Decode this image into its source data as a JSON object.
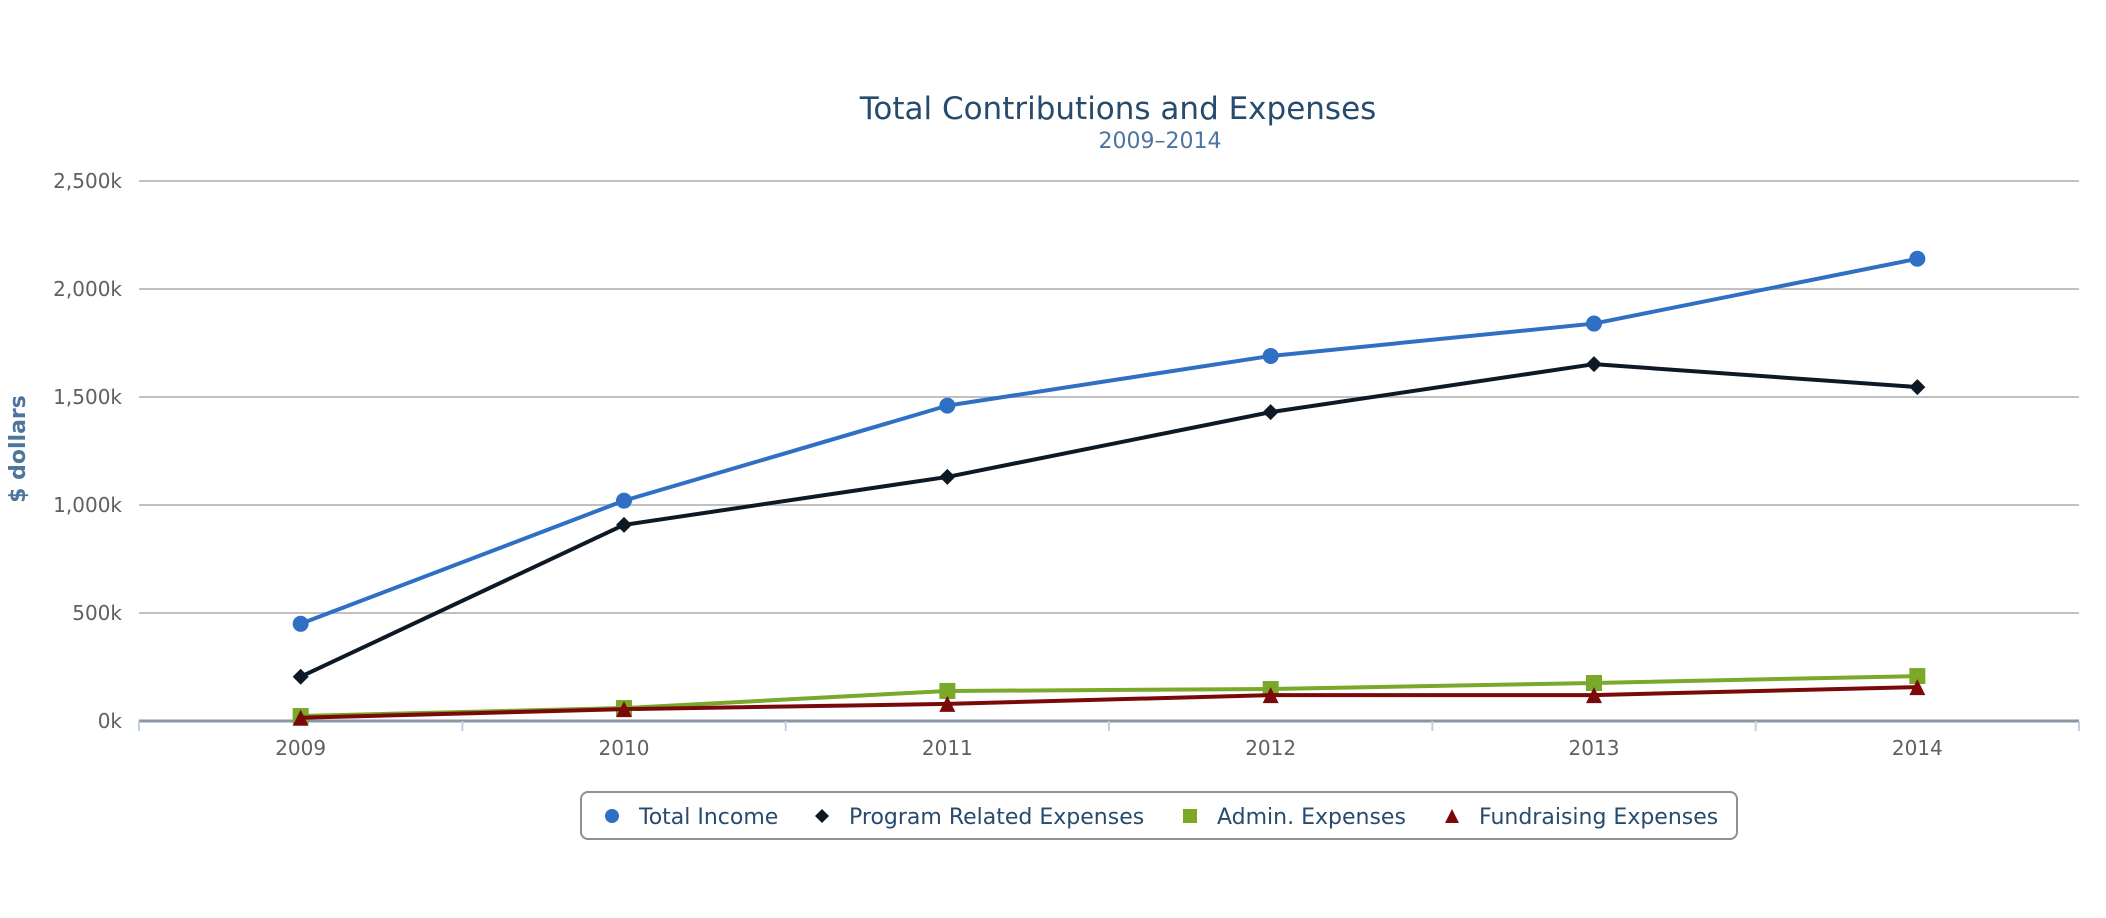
{
  "chart_data": {
    "type": "line",
    "title": "Total Contributions and Expenses",
    "subtitle": "2009–2014",
    "xlabel": "",
    "ylabel": "$ dollars",
    "categories": [
      "2009",
      "2010",
      "2011",
      "2012",
      "2013",
      "2014"
    ],
    "ylim": [
      0,
      2500000
    ],
    "yticks": [
      0,
      500000,
      1000000,
      1500000,
      2000000,
      2500000
    ],
    "ytick_labels": [
      "0k",
      "500k",
      "1,000k",
      "1,500k",
      "2,000k",
      "2,500k"
    ],
    "grid": true,
    "legend_position": "bottom-center",
    "series": [
      {
        "name": "Total Income",
        "marker": "circle",
        "color": "#2f6fc4",
        "values": [
          450000,
          1020000,
          1460000,
          1690000,
          1840000,
          2140000
        ]
      },
      {
        "name": "Program Related Expenses",
        "marker": "diamond",
        "color": "#0d1a26",
        "values": [
          205000,
          908000,
          1130000,
          1430000,
          1652000,
          1546000
        ]
      },
      {
        "name": "Admin. Expenses",
        "marker": "square",
        "color": "#7aa829",
        "values": [
          23000,
          60000,
          139000,
          148000,
          176000,
          208000
        ]
      },
      {
        "name": "Fundraising Expenses",
        "marker": "triangle",
        "color": "#7a0a0a",
        "values": [
          15000,
          55000,
          79000,
          120000,
          120000,
          157000
        ]
      }
    ]
  }
}
